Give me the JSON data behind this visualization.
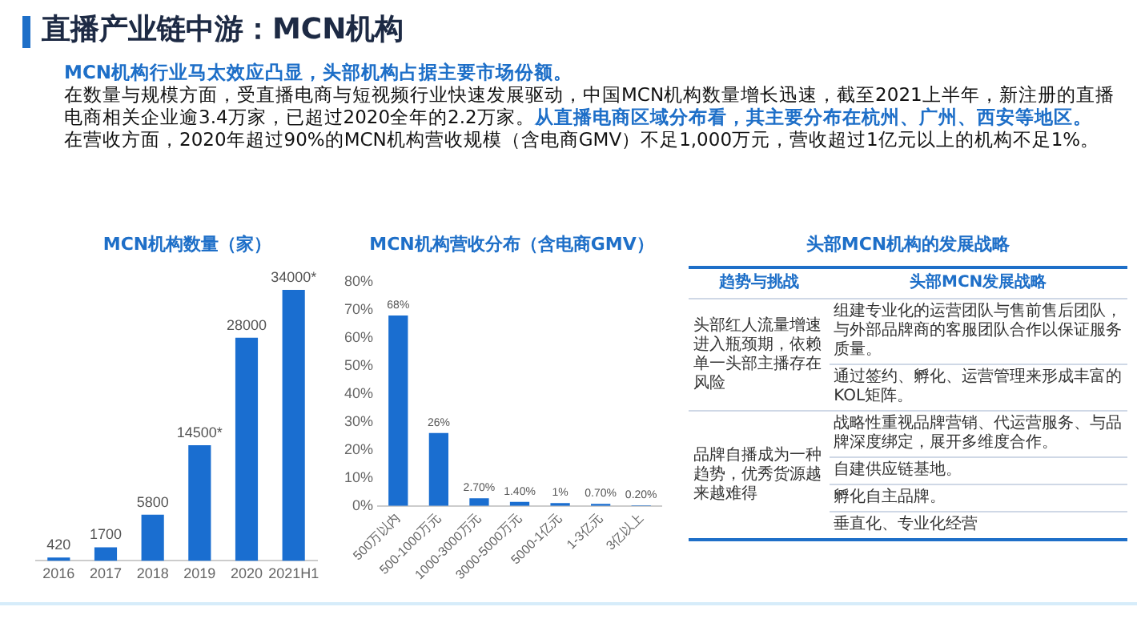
{
  "chart_data": [
    {
      "type": "other",
      "title": "直播产业链中游：MCN机构",
      "annotations": [
        "MCN机构行业马太效应凸显，头部机构占据主要市场份额。",
        "在数量与规模方面，受直播电商与短视频行业快速发展驱动，中国MCN机构数量增长迅速，截至2021上半年，新注册的直播电商相关企业逾3.4万家，已超过2020全年的2.2万家。",
        "从直播电商区域分布看，其主要分布在杭州、广州、西安等地区。",
        "在营收方面，2020年超过90%的MCN机构营收规模（含电商GMV）不足1,000万元，营收超过1亿元以上的机构不足1%。"
      ]
    },
    {
      "type": "bar",
      "title": "MCN机构数量（家）",
      "categories": [
        "2016",
        "2017",
        "2018",
        "2019",
        "2020",
        "2021H1"
      ],
      "values": [
        420,
        1700,
        5800,
        14500,
        28000,
        34000
      ],
      "color": "#1a6ed0",
      "value_labels": [
        "420",
        "1700",
        "5800",
        "14500*",
        "28000",
        "34000*"
      ],
      "tick_labels": "x"
    },
    {
      "type": "bar",
      "title": "MCN机构营收分布（含电商GMV）",
      "categories": [
        "500万以内",
        "500-1000万元",
        "1000-3000万元",
        "3000-5000万元",
        "5000-1亿元",
        "1-3亿元",
        "3亿以上"
      ],
      "values": [
        68,
        26,
        2.7,
        1.4,
        1,
        0.7,
        0.2
      ],
      "color": "#1a6ed0",
      "value_labels": [
        "68%",
        "26%",
        "2.70%",
        "1.40%",
        "1%",
        "0.70%",
        "0.20%"
      ],
      "ylim": [
        0,
        80
      ],
      "yticks": [
        {
          "value": 0,
          "label": "0%"
        },
        {
          "value": 10,
          "label": "10%"
        },
        {
          "value": 20,
          "label": "20%"
        },
        {
          "value": 30,
          "label": "30%"
        },
        {
          "value": 40,
          "label": "40%"
        },
        {
          "value": 50,
          "label": "50%"
        },
        {
          "value": 60,
          "label": "60%"
        },
        {
          "value": 70,
          "label": "70%"
        },
        {
          "value": 80,
          "label": "80%"
        }
      ]
    },
    {
      "type": "other",
      "title": "头部MCN机构的发展战略",
      "annotations": [
        "趋势与挑战",
        "头部MCN发展战略",
        "头部红人流量增速进入瓶颈期，依赖单一头部主播存在风险",
        "组建专业化的运营团队与售前售后团队，与外部品牌商的客服团队合作以保证服务质量。",
        "通过签约、孵化、运营管理来形成丰富的KOL矩阵。",
        "品牌自播成为一种趋势，优秀货源越来越难得",
        "战略性重视品牌营销、代运营服务、与品牌深度绑定，展开多维度合作。",
        "自建供应链基地。",
        "孵化自主品牌。",
        "垂直化、专业化经营"
      ]
    }
  ]
}
